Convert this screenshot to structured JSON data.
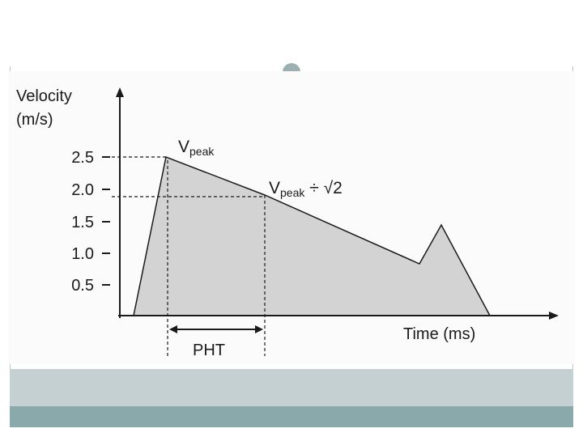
{
  "diagram": {
    "ylabel_line1": "Velocity",
    "ylabel_line2": "(m/s)",
    "yticks": [
      "2.5",
      "2.0",
      "1.5",
      "1.0",
      "0.5"
    ],
    "xlabel": "Time (ms)",
    "peak_label": {
      "main": "V",
      "sub": "peak"
    },
    "half_label": {
      "main": "V",
      "sub": "peak",
      "suffix": " ÷ √2"
    },
    "pht_label": "PHT"
  },
  "colors": {
    "fill": "#d3d3d3",
    "line": "#1a1a1a",
    "band_light": "#c5d0d3",
    "band_dark": "#8aa9aa"
  }
}
